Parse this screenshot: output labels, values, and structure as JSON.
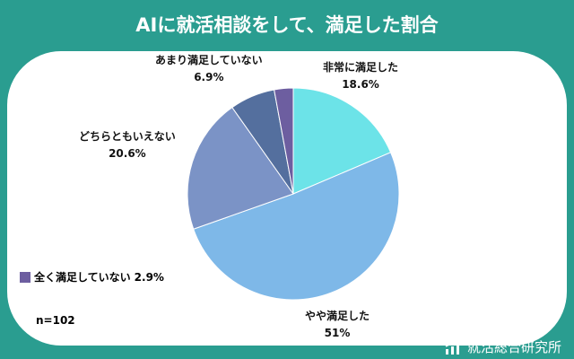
{
  "title": "AIに就活相談をして、満足した割合",
  "chart_data": {
    "type": "pie",
    "categories": [
      "非常に満足した",
      "やや満足した",
      "どちらともいえない",
      "あまり満足していない",
      "全く満足していない"
    ],
    "values": [
      18.6,
      51,
      20.6,
      6.9,
      2.9
    ],
    "value_labels": [
      "18.6%",
      "51%",
      "20.6%",
      "6.9%",
      "2.9%"
    ],
    "colors": [
      "#6ce3e8",
      "#7eb8e8",
      "#7b93c6",
      "#546f9e",
      "#6d5ea0"
    ],
    "start": "top",
    "direction": "clockwise"
  },
  "note": "n=102",
  "brand": "就活総合研究所"
}
